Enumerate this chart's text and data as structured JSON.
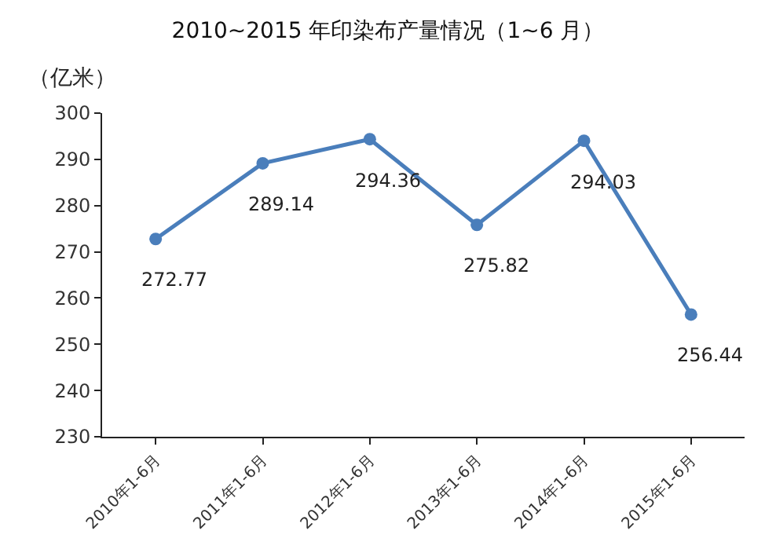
{
  "chart_data": {
    "type": "line",
    "title": "2010~2015 年印染布产量情况（1~6 月）",
    "ylabel": "（亿米）",
    "categories": [
      "2010年1-6月",
      "2011年1-6月",
      "2012年1-6月",
      "2013年1-6月",
      "2014年1-6月",
      "2015年1-6月"
    ],
    "series": [
      {
        "color": "#4a7ebb",
        "values": [
          272.77,
          289.14,
          294.36,
          275.82,
          294.03,
          256.44
        ]
      }
    ],
    "ylim": [
      230,
      300
    ],
    "yticks": [
      230,
      240,
      250,
      260,
      270,
      280,
      290,
      300
    ],
    "marker": "circle",
    "line_style": "solid",
    "data_labels": true
  }
}
